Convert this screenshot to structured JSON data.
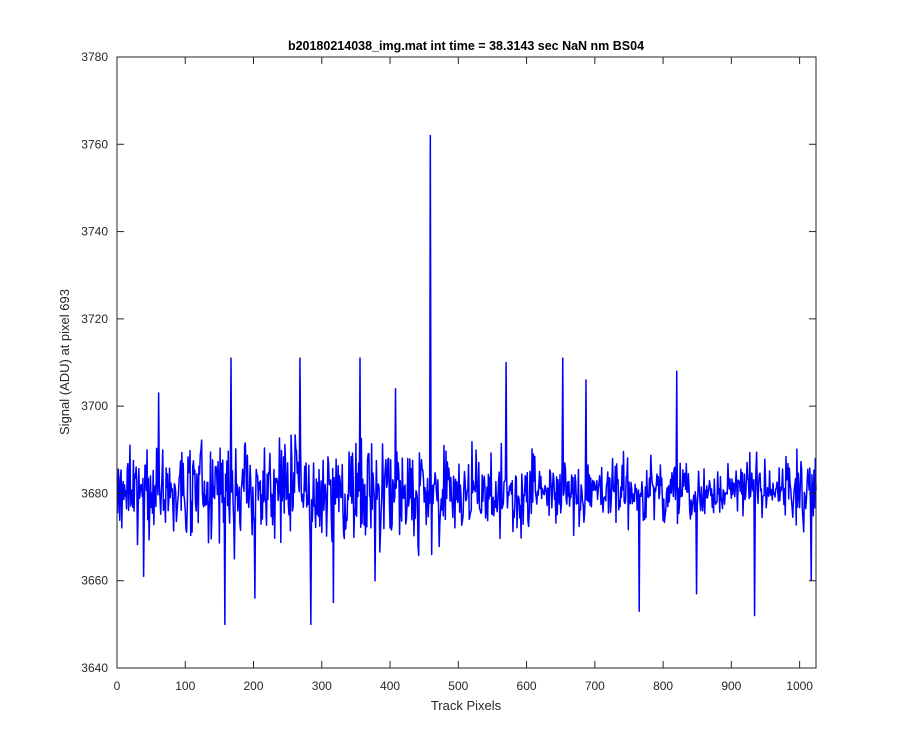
{
  "chart_data": {
    "type": "line",
    "title": "b20180214038_img.mat int time = 38.3143 sec  NaN nm BS04",
    "xlabel": "Track Pixels",
    "ylabel": "Signal (ADU) at pixel 693",
    "xlim": [
      0,
      1024
    ],
    "ylim": [
      3640,
      3780
    ],
    "xticks": [
      "0",
      "100",
      "200",
      "300",
      "400",
      "500",
      "600",
      "700",
      "800",
      "900",
      "1000"
    ],
    "yticks": [
      "3640",
      "3660",
      "3680",
      "3700",
      "3720",
      "3740",
      "3760",
      "3780"
    ],
    "grid": false,
    "line_color": "#0000FF",
    "series": [
      {
        "x_start": 1,
        "x_step": 1,
        "baseline": 3680,
        "noise_amplitude": 8,
        "n_points": 1024,
        "marked_points": [
          {
            "x": 39,
            "y": 3661
          },
          {
            "x": 61,
            "y": 3703
          },
          {
            "x": 158,
            "y": 3650
          },
          {
            "x": 167,
            "y": 3711
          },
          {
            "x": 172,
            "y": 3665
          },
          {
            "x": 202,
            "y": 3656
          },
          {
            "x": 268,
            "y": 3711
          },
          {
            "x": 284,
            "y": 3650
          },
          {
            "x": 317,
            "y": 3655
          },
          {
            "x": 356,
            "y": 3711
          },
          {
            "x": 378,
            "y": 3660
          },
          {
            "x": 408,
            "y": 3704
          },
          {
            "x": 459,
            "y": 3762
          },
          {
            "x": 461,
            "y": 3666
          },
          {
            "x": 570,
            "y": 3710
          },
          {
            "x": 653,
            "y": 3711
          },
          {
            "x": 687,
            "y": 3706
          },
          {
            "x": 765,
            "y": 3653
          },
          {
            "x": 820,
            "y": 3708
          },
          {
            "x": 849,
            "y": 3657
          },
          {
            "x": 934,
            "y": 3652
          },
          {
            "x": 1017,
            "y": 3660
          }
        ]
      }
    ]
  }
}
